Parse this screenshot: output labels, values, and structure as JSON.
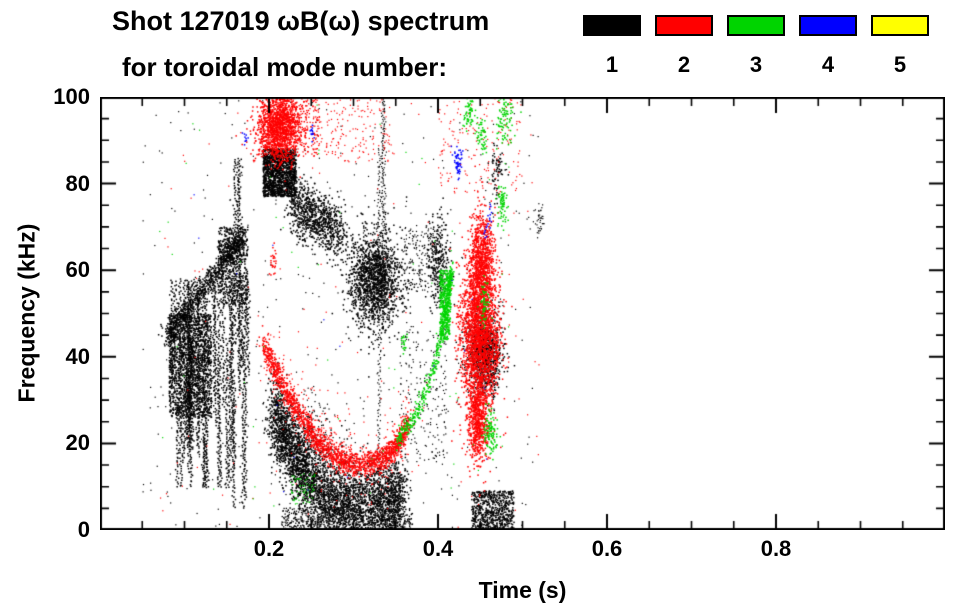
{
  "legend": {
    "entries": [
      {
        "label": "1",
        "color": "#000000"
      },
      {
        "label": "2",
        "color": "#ff0000"
      },
      {
        "label": "3",
        "color": "#00d400"
      },
      {
        "label": "4",
        "color": "#0000ff"
      },
      {
        "label": "5",
        "color": "#ffff00"
      }
    ]
  },
  "chart_data": {
    "type": "scatter",
    "title": "Shot 127019 ωB(ω) spectrum",
    "subtitle": "for toroidal mode number:",
    "xlabel": "Time (s)",
    "ylabel": "Frequency (kHz)",
    "xlim": [
      0,
      1
    ],
    "ylim": [
      0,
      100
    ],
    "grid": false,
    "legend_position": "top-right",
    "x_ticks": [
      {
        "v": 0.2,
        "label": "0.2"
      },
      {
        "v": 0.4,
        "label": "0.4"
      },
      {
        "v": 0.6,
        "label": "0.6"
      },
      {
        "v": 0.8,
        "label": "0.8"
      }
    ],
    "y_ticks": [
      {
        "v": 0,
        "label": "0"
      },
      {
        "v": 20,
        "label": "20"
      },
      {
        "v": 40,
        "label": "40"
      },
      {
        "v": 60,
        "label": "60"
      },
      {
        "v": 80,
        "label": "80"
      },
      {
        "v": 100,
        "label": "100"
      }
    ],
    "x_minor_step": 0.05,
    "y_minor_step": 5,
    "mode_colors": {
      "1": "#000000",
      "2": "#ff0000",
      "3": "#00d400",
      "4": "#0000ff",
      "5": "#ffff00"
    },
    "clusters": [
      {
        "m": 1,
        "ty": "vstreaks",
        "t": [
          0.085,
          0.185
        ],
        "f": [
          10,
          58
        ],
        "k": 42
      },
      {
        "m": 1,
        "ty": "rect",
        "t": [
          0.082,
          0.132
        ],
        "f": [
          26,
          50
        ],
        "n": 1500
      },
      {
        "m": 1,
        "ty": "curve",
        "pts": [
          [
            0.078,
            44
          ],
          [
            0.1,
            50
          ],
          [
            0.125,
            56
          ],
          [
            0.15,
            63
          ],
          [
            0.168,
            68
          ]
        ],
        "jt": 0.004,
        "jf": 1.4,
        "n": 800
      },
      {
        "m": 1,
        "ty": "rect",
        "t": [
          0.14,
          0.175
        ],
        "f": [
          52,
          70
        ],
        "n": 600
      },
      {
        "m": 1,
        "ty": "vstreaks",
        "t": [
          0.155,
          0.18
        ],
        "f": [
          5,
          86
        ],
        "k": 6
      },
      {
        "m": 1,
        "ty": "rect",
        "t": [
          0.193,
          0.232
        ],
        "f": [
          77,
          88
        ],
        "n": 1500
      },
      {
        "m": 1,
        "ty": "curve",
        "pts": [
          [
            0.228,
            75
          ],
          [
            0.255,
            72
          ],
          [
            0.285,
            69
          ]
        ],
        "jt": 0.006,
        "jf": 3.2,
        "n": 900
      },
      {
        "m": 1,
        "ty": "gauss",
        "c": [
          0.325,
          58
        ],
        "s": [
          0.016,
          5.5
        ],
        "n": 1600
      },
      {
        "m": 1,
        "ty": "curve",
        "pts": [
          [
            0.205,
            27
          ],
          [
            0.222,
            20
          ],
          [
            0.242,
            13
          ],
          [
            0.268,
            8
          ],
          [
            0.3,
            6
          ],
          [
            0.335,
            6
          ],
          [
            0.358,
            8
          ]
        ],
        "jt": 0.005,
        "jf": 4.5,
        "n": 3800
      },
      {
        "m": 1,
        "ty": "rect",
        "t": [
          0.215,
          0.37
        ],
        "f": [
          0,
          5
        ],
        "n": 600,
        "sz": 1.3
      },
      {
        "m": 1,
        "ty": "gauss",
        "c": [
          0.252,
          20
        ],
        "s": [
          0.02,
          6
        ],
        "n": 300,
        "sz": 1.2
      },
      {
        "m": 1,
        "ty": "vstreaks",
        "t": [
          0.33,
          0.34
        ],
        "f": [
          0,
          100
        ],
        "k": 3,
        "sz": 1.2
      },
      {
        "m": 1,
        "ty": "rect",
        "t": [
          0.355,
          0.41
        ],
        "f": [
          15,
          48
        ],
        "n": 220,
        "sz": 1.2
      },
      {
        "m": 1,
        "ty": "gauss",
        "c": [
          0.4,
          62
        ],
        "s": [
          0.007,
          5
        ],
        "n": 300
      },
      {
        "m": 1,
        "ty": "rect",
        "t": [
          0.36,
          0.395
        ],
        "f": [
          55,
          70
        ],
        "n": 150,
        "sz": 1.2
      },
      {
        "m": 1,
        "ty": "gauss",
        "c": [
          0.455,
          41
        ],
        "s": [
          0.01,
          4.5
        ],
        "n": 900
      },
      {
        "m": 1,
        "ty": "rect",
        "t": [
          0.44,
          0.49
        ],
        "f": [
          0,
          9
        ],
        "n": 650
      },
      {
        "m": 1,
        "ty": "gauss",
        "c": [
          0.47,
          83
        ],
        "s": [
          0.004,
          3
        ],
        "n": 70
      },
      {
        "m": 1,
        "ty": "gauss",
        "c": [
          0.52,
          72
        ],
        "s": [
          0.003,
          2
        ],
        "n": 40,
        "sz": 1.2
      },
      {
        "m": 1,
        "ty": "rect",
        "t": [
          0.05,
          0.52
        ],
        "f": [
          0,
          100
        ],
        "n": 380,
        "sz": 1.2
      },
      {
        "m": 2,
        "ty": "gauss",
        "c": [
          0.212,
          93
        ],
        "s": [
          0.013,
          4
        ],
        "n": 1400
      },
      {
        "m": 2,
        "ty": "rect",
        "t": [
          0.19,
          0.26
        ],
        "f": [
          86,
          100
        ],
        "n": 450,
        "sz": 1.3
      },
      {
        "m": 2,
        "ty": "rect",
        "t": [
          0.26,
          0.345
        ],
        "f": [
          85,
          100
        ],
        "n": 160,
        "sz": 1.2
      },
      {
        "m": 2,
        "ty": "curve",
        "pts": [
          [
            0.193,
            43
          ],
          [
            0.212,
            35
          ],
          [
            0.232,
            28
          ],
          [
            0.252,
            22
          ],
          [
            0.272,
            18
          ],
          [
            0.295,
            15.5
          ],
          [
            0.318,
            15
          ],
          [
            0.338,
            17
          ],
          [
            0.353,
            20
          ],
          [
            0.366,
            25
          ]
        ],
        "jt": 0.002,
        "jf": 1.6,
        "n": 1700
      },
      {
        "m": 2,
        "ty": "curve",
        "pts": [
          [
            0.193,
            43
          ],
          [
            0.232,
            28
          ],
          [
            0.272,
            18
          ],
          [
            0.318,
            15
          ],
          [
            0.366,
            25
          ]
        ],
        "jt": 0.004,
        "jf": 5.5,
        "n": 280,
        "sz": 1.2
      },
      {
        "m": 2,
        "ty": "gauss",
        "c": [
          0.449,
          45
        ],
        "s": [
          0.011,
          9
        ],
        "n": 2400
      },
      {
        "m": 2,
        "ty": "gauss",
        "c": [
          0.452,
          62
        ],
        "s": [
          0.007,
          6
        ],
        "n": 800
      },
      {
        "m": 2,
        "ty": "gauss",
        "c": [
          0.447,
          25
        ],
        "s": [
          0.006,
          5
        ],
        "n": 600
      },
      {
        "m": 2,
        "ty": "vstreaks",
        "t": [
          0.465,
          0.472
        ],
        "f": [
          38,
          52
        ],
        "k": 2
      },
      {
        "m": 2,
        "ty": "rect",
        "t": [
          0.4,
          0.5
        ],
        "f": [
          78,
          100
        ],
        "n": 170,
        "sz": 1.2
      },
      {
        "m": 2,
        "ty": "gauss",
        "c": [
          0.205,
          62
        ],
        "s": [
          0.002,
          2
        ],
        "n": 25
      },
      {
        "m": 2,
        "ty": "rect",
        "t": [
          0.07,
          0.52
        ],
        "f": [
          0,
          100
        ],
        "n": 140,
        "sz": 1.2
      },
      {
        "m": 3,
        "ty": "curve",
        "pts": [
          [
            0.352,
            21
          ],
          [
            0.372,
            26
          ],
          [
            0.392,
            35
          ],
          [
            0.404,
            45
          ],
          [
            0.412,
            54
          ],
          [
            0.417,
            60
          ]
        ],
        "jt": 0.0015,
        "jf": 1.2,
        "n": 450
      },
      {
        "m": 3,
        "ty": "rect",
        "t": [
          0.402,
          0.415
        ],
        "f": [
          44,
          60
        ],
        "n": 400
      },
      {
        "m": 3,
        "ty": "gauss",
        "c": [
          0.437,
          96
        ],
        "s": [
          0.003,
          2
        ],
        "n": 60
      },
      {
        "m": 3,
        "ty": "gauss",
        "c": [
          0.452,
          91
        ],
        "s": [
          0.003,
          2
        ],
        "n": 50
      },
      {
        "m": 3,
        "ty": "gauss",
        "c": [
          0.478,
          95
        ],
        "s": [
          0.005,
          3
        ],
        "n": 90
      },
      {
        "m": 3,
        "ty": "gauss",
        "c": [
          0.455,
          52
        ],
        "s": [
          0.003,
          2.5
        ],
        "n": 60
      },
      {
        "m": 3,
        "ty": "gauss",
        "c": [
          0.462,
          22
        ],
        "s": [
          0.004,
          2.5
        ],
        "n": 110
      },
      {
        "m": 3,
        "ty": "gauss",
        "c": [
          0.476,
          75
        ],
        "s": [
          0.003,
          2
        ],
        "n": 70
      },
      {
        "m": 3,
        "ty": "gauss",
        "c": [
          0.36,
          43
        ],
        "s": [
          0.002,
          1.5
        ],
        "n": 20
      },
      {
        "m": 3,
        "ty": "rect",
        "t": [
          0.225,
          0.255
        ],
        "f": [
          6,
          13
        ],
        "n": 70,
        "sz": 1.2
      },
      {
        "m": 3,
        "ty": "rect",
        "t": [
          0.07,
          0.5
        ],
        "f": [
          0,
          100
        ],
        "n": 60,
        "sz": 1.2
      },
      {
        "m": 4,
        "ty": "gauss",
        "c": [
          0.424,
          85
        ],
        "s": [
          0.003,
          2
        ],
        "n": 55
      },
      {
        "m": 4,
        "ty": "vstreaks",
        "t": [
          0.456,
          0.463
        ],
        "f": [
          67,
          75
        ],
        "k": 2
      },
      {
        "m": 4,
        "ty": "gauss",
        "c": [
          0.251,
          91.5
        ],
        "s": [
          0.002,
          1
        ],
        "n": 14
      },
      {
        "m": 4,
        "ty": "gauss",
        "c": [
          0.172,
          90
        ],
        "s": [
          0.0015,
          1
        ],
        "n": 10
      },
      {
        "m": 4,
        "ty": "rect",
        "t": [
          0.1,
          0.5
        ],
        "f": [
          0,
          100
        ],
        "n": 18,
        "sz": 1.2
      }
    ]
  }
}
